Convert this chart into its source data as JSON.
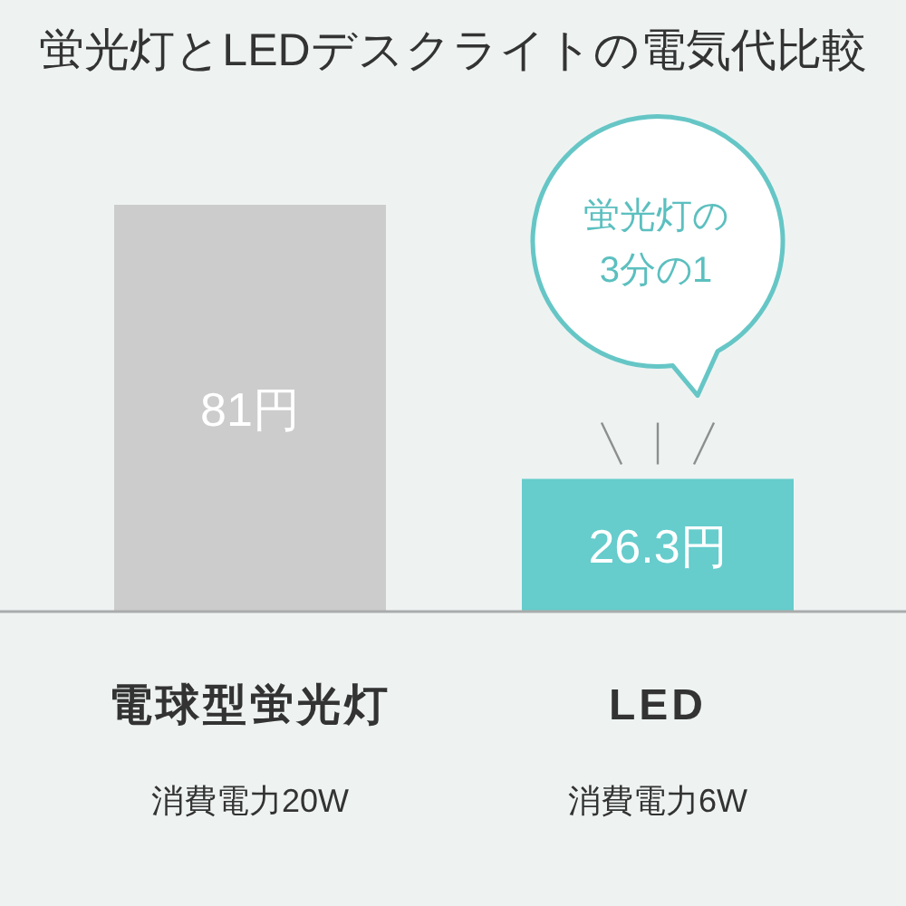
{
  "chart_data": {
    "type": "bar",
    "title": "蛍光灯とLEDデスクライトの電気代比較",
    "categories": [
      "電球型蛍光灯",
      "LED"
    ],
    "values": [
      81,
      26.3
    ],
    "colors": [
      "#cccccc",
      "#66cccc"
    ],
    "value_labels": [
      "81円",
      "26.3円"
    ],
    "annotations": [
      "消費電力20W",
      "消費電力6W",
      "蛍光灯の\n3分の1"
    ]
  }
}
